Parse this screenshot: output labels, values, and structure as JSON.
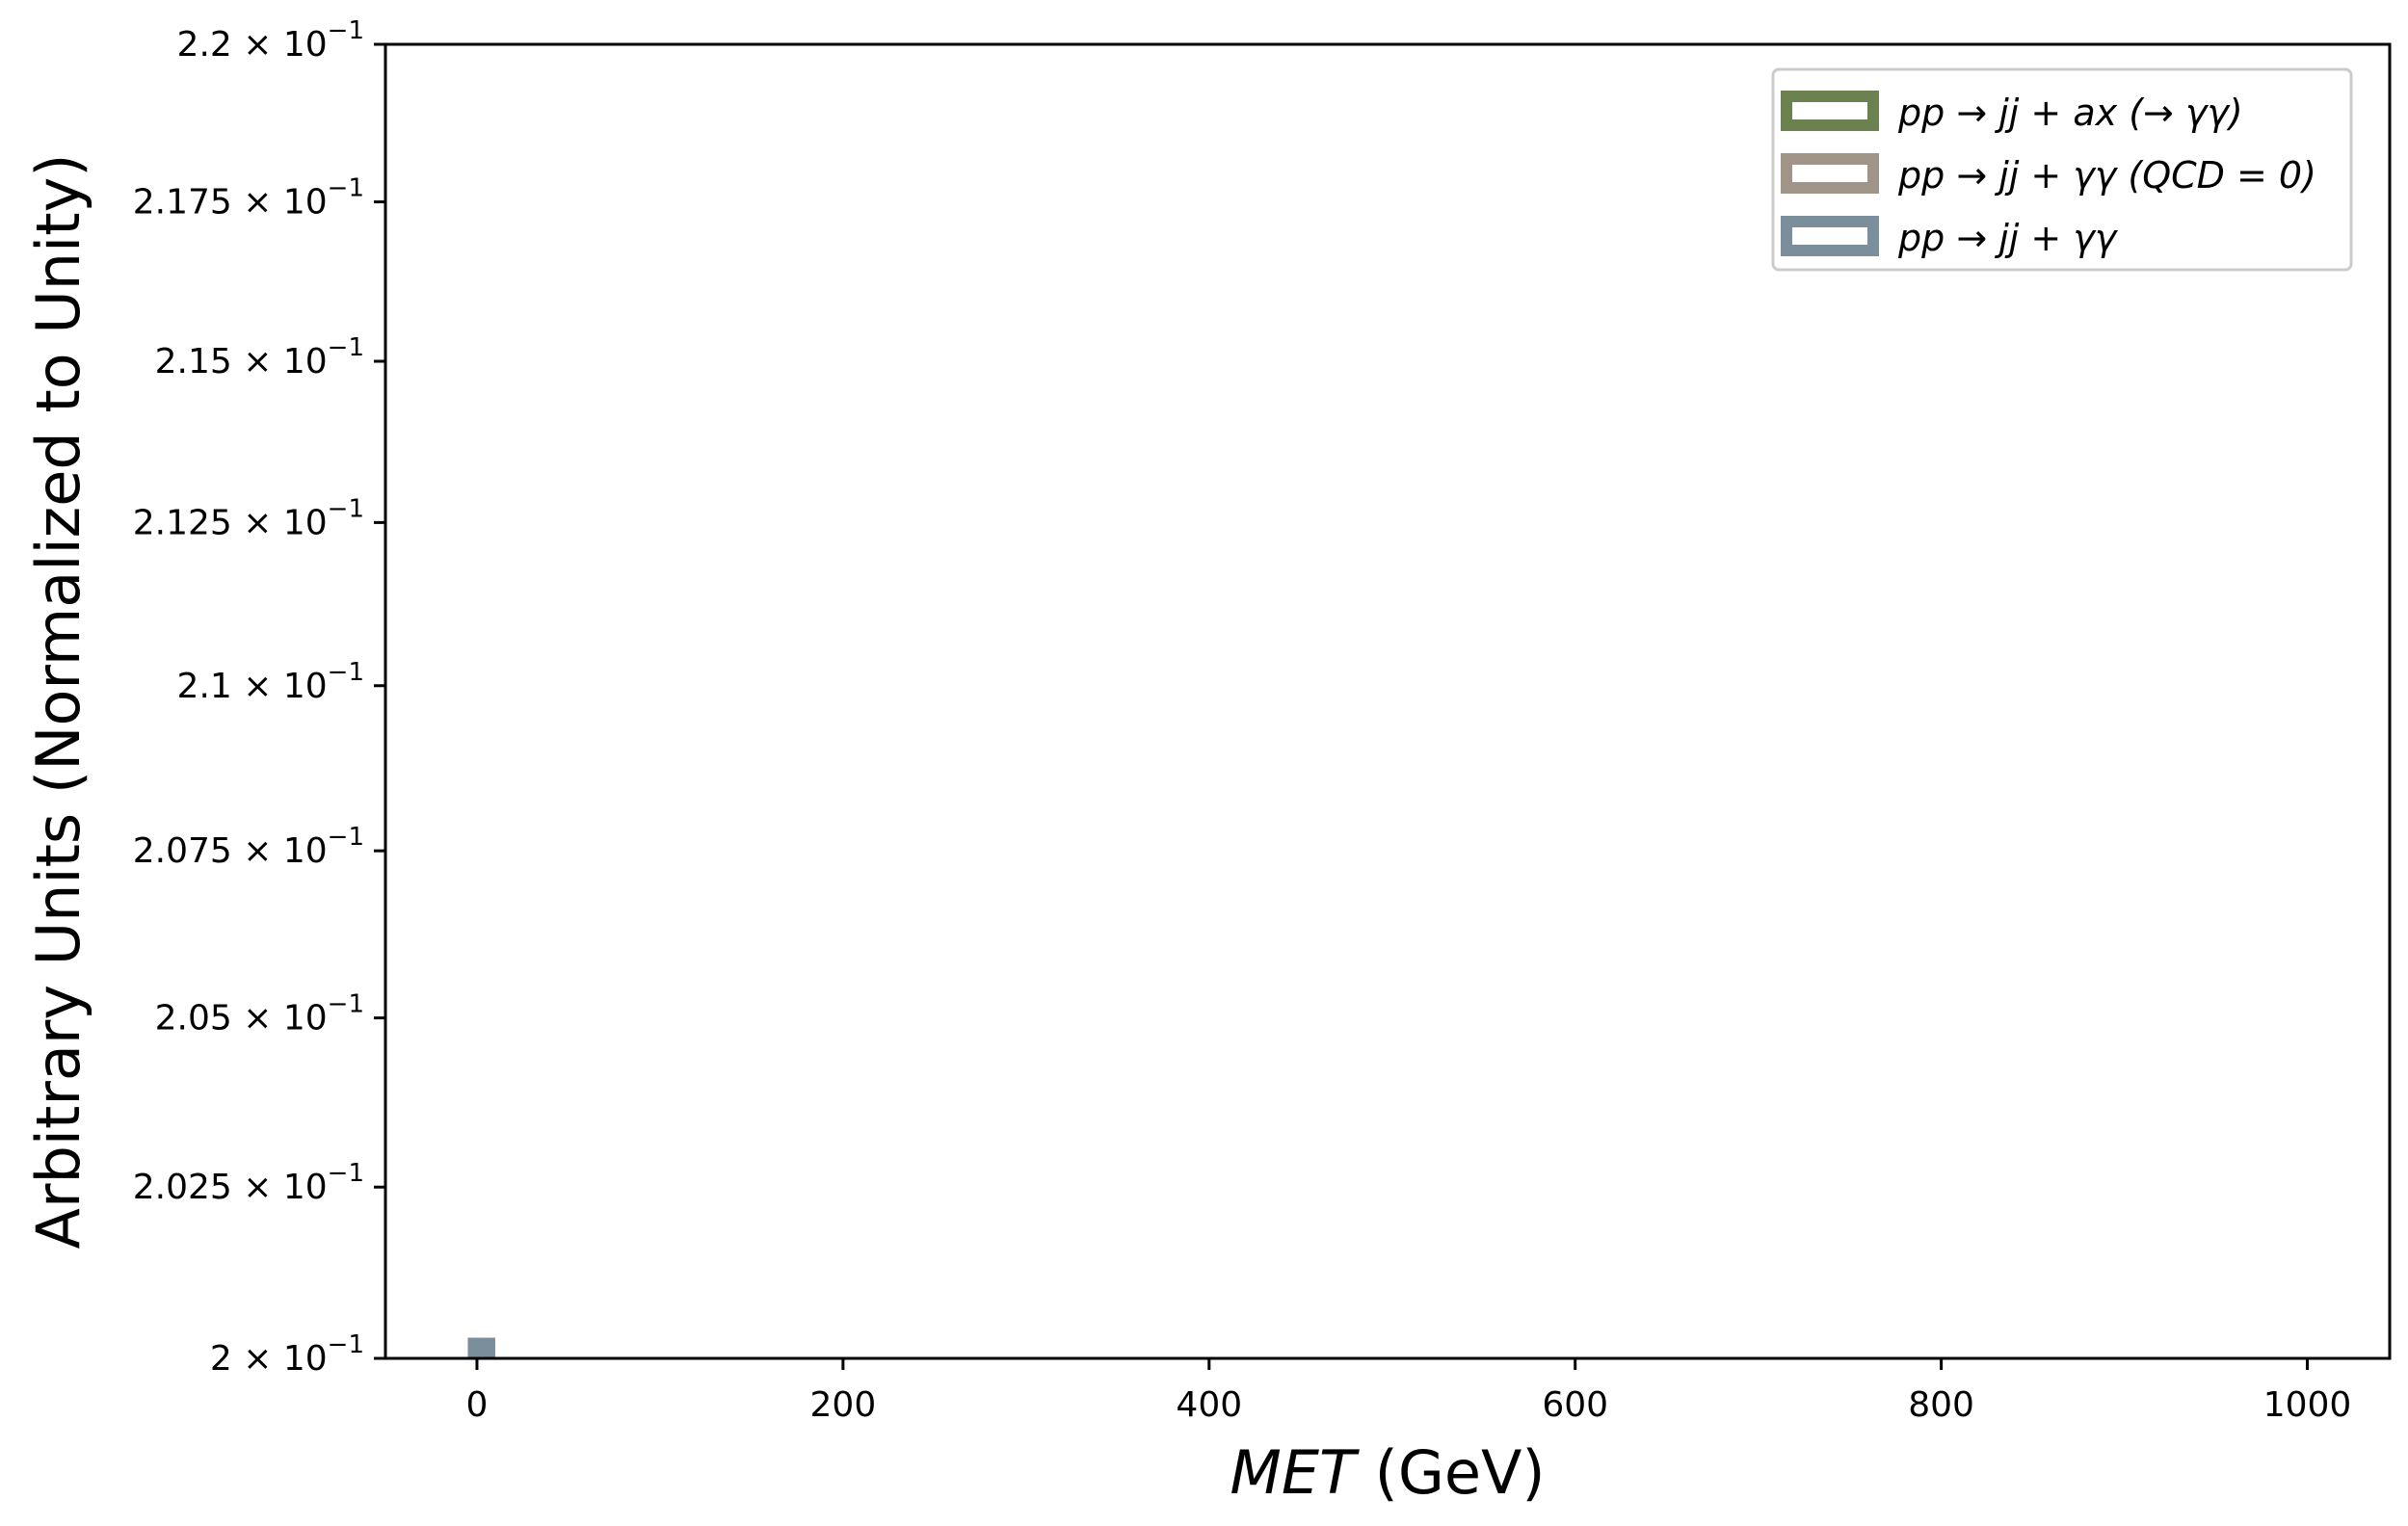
{
  "chart_data": {
    "type": "bar",
    "xlabel": {
      "italic": "MET",
      "roman": " (GeV)"
    },
    "ylabel": "Arbitrary Units (Normalized to Unity)",
    "xlim": [
      -50,
      1045
    ],
    "ylim": [
      0.2,
      0.22
    ],
    "yscale": "log",
    "x_ticks": [
      {
        "value": 0,
        "label": "0"
      },
      {
        "value": 200,
        "label": "200"
      },
      {
        "value": 400,
        "label": "400"
      },
      {
        "value": 600,
        "label": "600"
      },
      {
        "value": 800,
        "label": "800"
      },
      {
        "value": 1000,
        "label": "1000"
      }
    ],
    "y_ticks": [
      {
        "value": 0.2,
        "mantissa": "2",
        "exp": "−1"
      },
      {
        "value": 0.2025,
        "mantissa": "2.025",
        "exp": "−1"
      },
      {
        "value": 0.205,
        "mantissa": "2.05",
        "exp": "−1"
      },
      {
        "value": 0.2075,
        "mantissa": "2.075",
        "exp": "−1"
      },
      {
        "value": 0.21,
        "mantissa": "2.1",
        "exp": "−1"
      },
      {
        "value": 0.2125,
        "mantissa": "2.125",
        "exp": "−1"
      },
      {
        "value": 0.215,
        "mantissa": "2.15",
        "exp": "−1"
      },
      {
        "value": 0.2175,
        "mantissa": "2.175",
        "exp": "−1"
      },
      {
        "value": 0.22,
        "mantissa": "2.2",
        "exp": "−1"
      }
    ],
    "legend_position": "upper-right",
    "series": [
      {
        "name": "pp → jj + ax (→ γγ)",
        "color": "#6b8150",
        "type": "step-hist"
      },
      {
        "name": "pp → jj + γγ (QCD = 0)",
        "color": "#a09488",
        "type": "step-hist"
      },
      {
        "name": "pp → jj + γγ",
        "color": "#7a8e9c",
        "type": "step-hist",
        "visible_bins": [
          {
            "x_start": -5,
            "x_end": 10,
            "value": 0.2003
          }
        ]
      }
    ]
  }
}
